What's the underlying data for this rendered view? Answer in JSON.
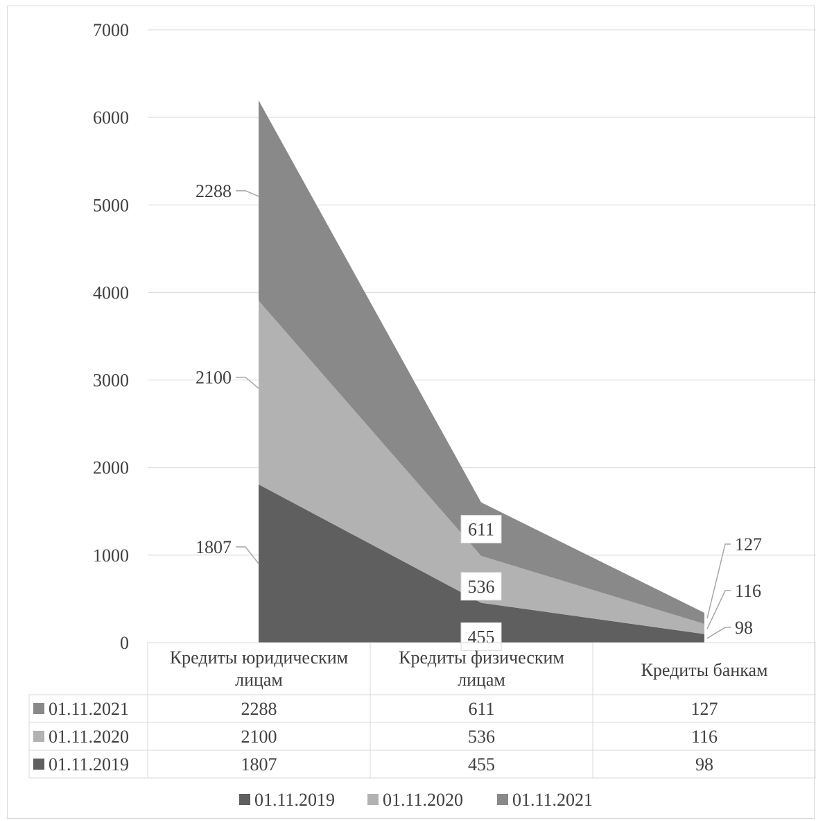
{
  "chart_data": {
    "type": "area",
    "stacked": true,
    "categories": [
      "Кредиты юридическим лицам",
      "Кредиты физическим лицам",
      "Кредиты банкам"
    ],
    "category_lines": [
      [
        "Кредиты юридическим",
        "лицам"
      ],
      [
        "Кредиты физическим",
        "лицам"
      ],
      [
        "Кредиты банкам"
      ]
    ],
    "series": [
      {
        "name": "01.11.2019",
        "values": [
          1807,
          455,
          98
        ],
        "color": "#5f5f5f"
      },
      {
        "name": "01.11.2020",
        "values": [
          2100,
          536,
          116
        ],
        "color": "#b2b2b2"
      },
      {
        "name": "01.11.2021",
        "values": [
          2288,
          611,
          127
        ],
        "color": "#898989"
      }
    ],
    "table_order": [
      "01.11.2021",
      "01.11.2020",
      "01.11.2019"
    ],
    "yticks": [
      0,
      1000,
      2000,
      3000,
      4000,
      5000,
      6000,
      7000
    ],
    "ylim": [
      0,
      7000
    ],
    "grid": true,
    "legend": "bottom",
    "data_table": true,
    "title": "",
    "xlabel": "",
    "ylabel": ""
  }
}
